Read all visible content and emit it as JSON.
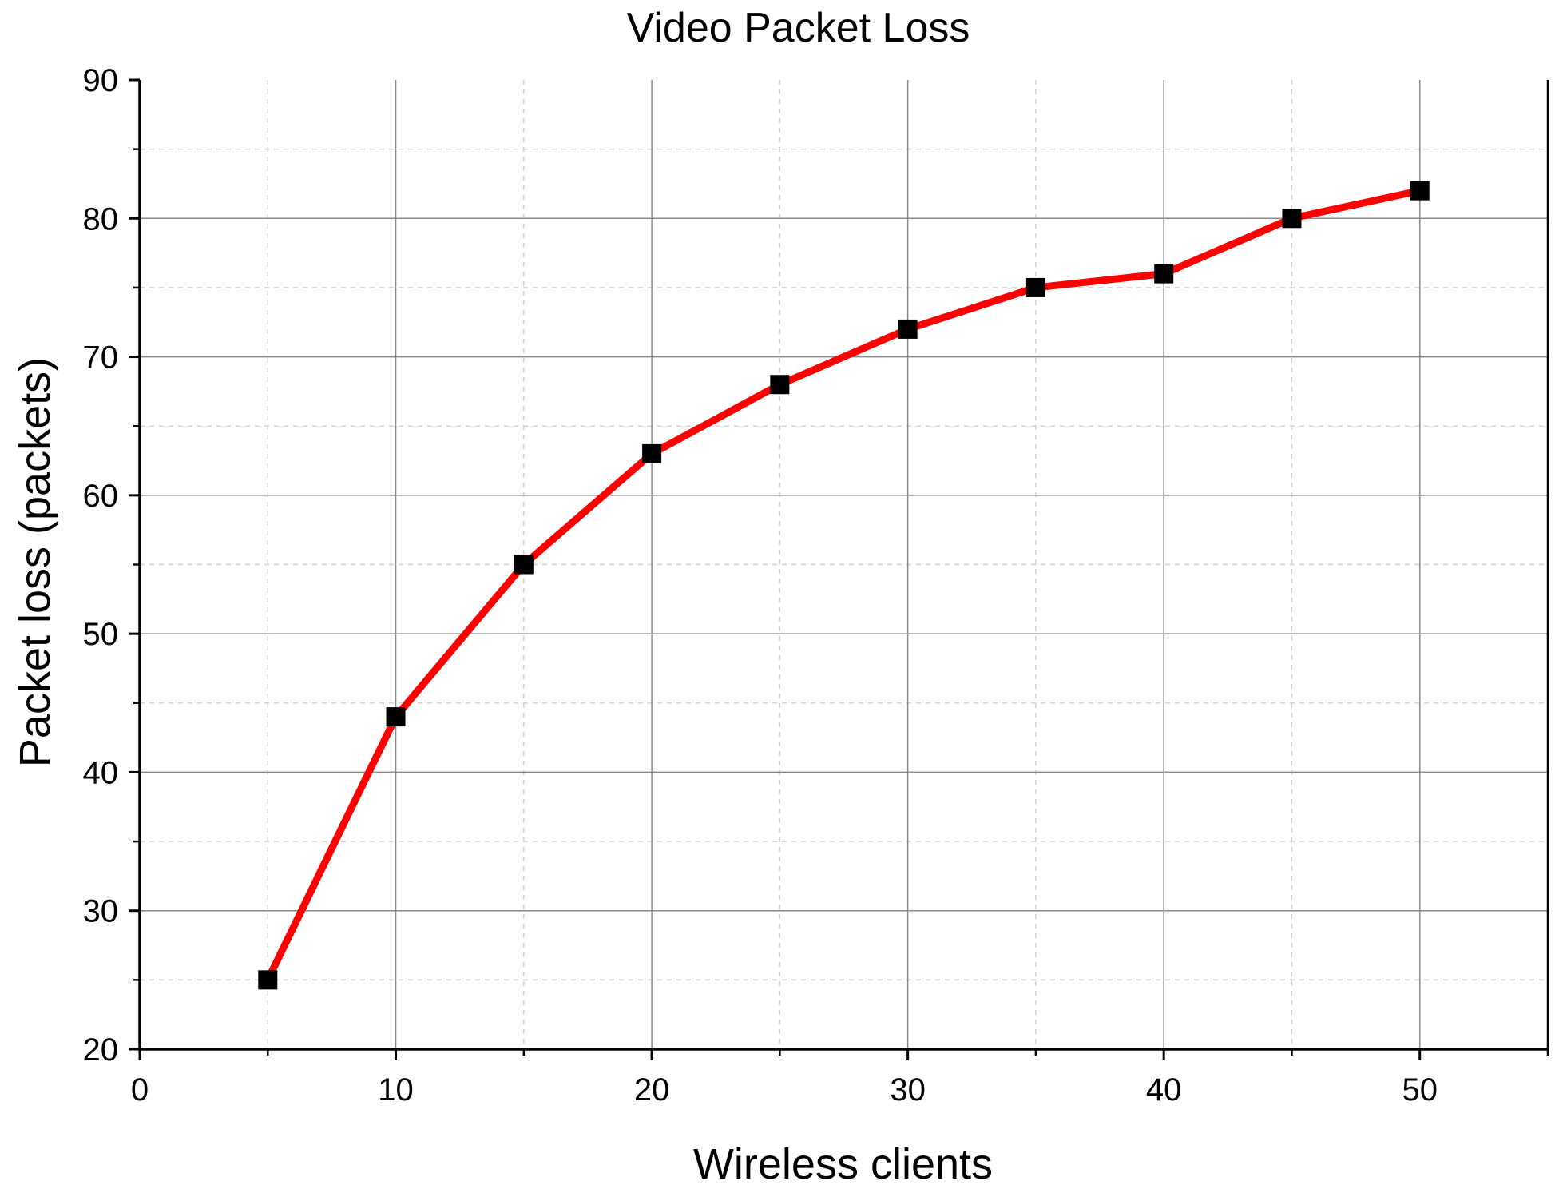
{
  "chart_data": {
    "type": "line",
    "title": "Video Packet Loss",
    "xlabel": "Wireless clients",
    "ylabel": "Packet loss (packets)",
    "xlim": [
      0,
      55
    ],
    "ylim": [
      20,
      90
    ],
    "x_ticks": [
      "0",
      "10",
      "20",
      "30",
      "40",
      "50"
    ],
    "y_ticks": [
      "20",
      "30",
      "40",
      "50",
      "60",
      "70",
      "80",
      "90"
    ],
    "grid": "major solid, minor dashed",
    "legend": "none",
    "series": [
      {
        "x": [
          5,
          10,
          15,
          20,
          25,
          30,
          35,
          40,
          45,
          50
        ],
        "values": [
          25,
          44,
          55,
          63,
          68,
          72,
          75,
          76,
          80,
          82
        ],
        "line_color": "#ff0000",
        "marker": "square",
        "marker_color": "#000000"
      }
    ]
  }
}
